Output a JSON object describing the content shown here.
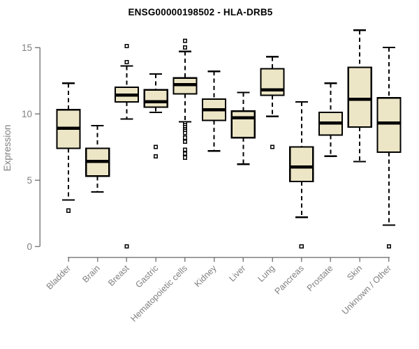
{
  "figure": {
    "background": "#ffffff"
  },
  "chart_data": {
    "type": "boxplot",
    "title": "ENSG00000198502 - HLA-DRB5",
    "xlabel": "",
    "ylabel": "Expression",
    "ylim": [
      0,
      16.6
    ],
    "yticks": [
      0,
      5,
      10,
      15
    ],
    "grid": false,
    "legend": null,
    "categories": [
      "Bladder",
      "Brain",
      "Breast",
      "Gastric",
      "Hematopoietic cells",
      "Kidney",
      "Liver",
      "Lung",
      "Pancreas",
      "Prostate",
      "Skin",
      "Unknown / Other"
    ],
    "boxes": [
      {
        "category": "Bladder",
        "whisker_low": 3.5,
        "q1": 7.4,
        "median": 8.9,
        "q3": 10.3,
        "whisker_high": 12.3,
        "outliers": [
          2.7
        ]
      },
      {
        "category": "Brain",
        "whisker_low": 4.1,
        "q1": 5.3,
        "median": 6.4,
        "q3": 7.4,
        "whisker_high": 9.1,
        "outliers": []
      },
      {
        "category": "Breast",
        "whisker_low": 9.6,
        "q1": 10.9,
        "median": 11.4,
        "q3": 12.0,
        "whisker_high": 13.6,
        "outliers": [
          15.1,
          13.9,
          0.0
        ]
      },
      {
        "category": "Gastric",
        "whisker_low": 10.1,
        "q1": 10.5,
        "median": 10.9,
        "q3": 11.8,
        "whisker_high": 13.0,
        "outliers": [
          7.5,
          6.8
        ]
      },
      {
        "category": "Hematopoietic cells",
        "whisker_low": 9.4,
        "q1": 11.5,
        "median": 12.2,
        "q3": 12.7,
        "whisker_high": 14.7,
        "outliers": [
          15.5,
          15.0,
          9.3,
          9.15,
          9.0,
          8.85,
          8.7,
          8.55,
          8.2,
          7.9,
          7.3,
          7.0,
          6.7
        ]
      },
      {
        "category": "Kidney",
        "whisker_low": 7.2,
        "q1": 9.5,
        "median": 10.3,
        "q3": 11.1,
        "whisker_high": 13.2,
        "outliers": []
      },
      {
        "category": "Liver",
        "whisker_low": 6.2,
        "q1": 8.2,
        "median": 9.7,
        "q3": 10.2,
        "whisker_high": 11.6,
        "outliers": []
      },
      {
        "category": "Lung",
        "whisker_low": 9.8,
        "q1": 11.4,
        "median": 11.8,
        "q3": 13.4,
        "whisker_high": 14.3,
        "outliers": [
          7.5
        ]
      },
      {
        "category": "Pancreas",
        "whisker_low": 2.2,
        "q1": 4.9,
        "median": 6.0,
        "q3": 7.5,
        "whisker_high": 10.9,
        "outliers": [
          0.0
        ]
      },
      {
        "category": "Prostate",
        "whisker_low": 6.8,
        "q1": 8.4,
        "median": 9.3,
        "q3": 10.1,
        "whisker_high": 12.3,
        "outliers": []
      },
      {
        "category": "Skin",
        "whisker_low": 6.4,
        "q1": 9.0,
        "median": 11.1,
        "q3": 13.5,
        "whisker_high": 16.3,
        "outliers": []
      },
      {
        "category": "Unknown / Other",
        "whisker_low": 1.6,
        "q1": 7.1,
        "median": 9.3,
        "q3": 11.2,
        "whisker_high": 15.0,
        "outliers": [
          0.0
        ]
      }
    ],
    "colors": {
      "box_fill": "#EDE6C6",
      "box_border": "#000000",
      "median": "#000000",
      "whisker": "#000000",
      "outlier_fill": "#FFFFFF",
      "outlier_border": "#000000",
      "axis": "#808080",
      "tick_label": "#808080",
      "title": "#000000"
    }
  }
}
